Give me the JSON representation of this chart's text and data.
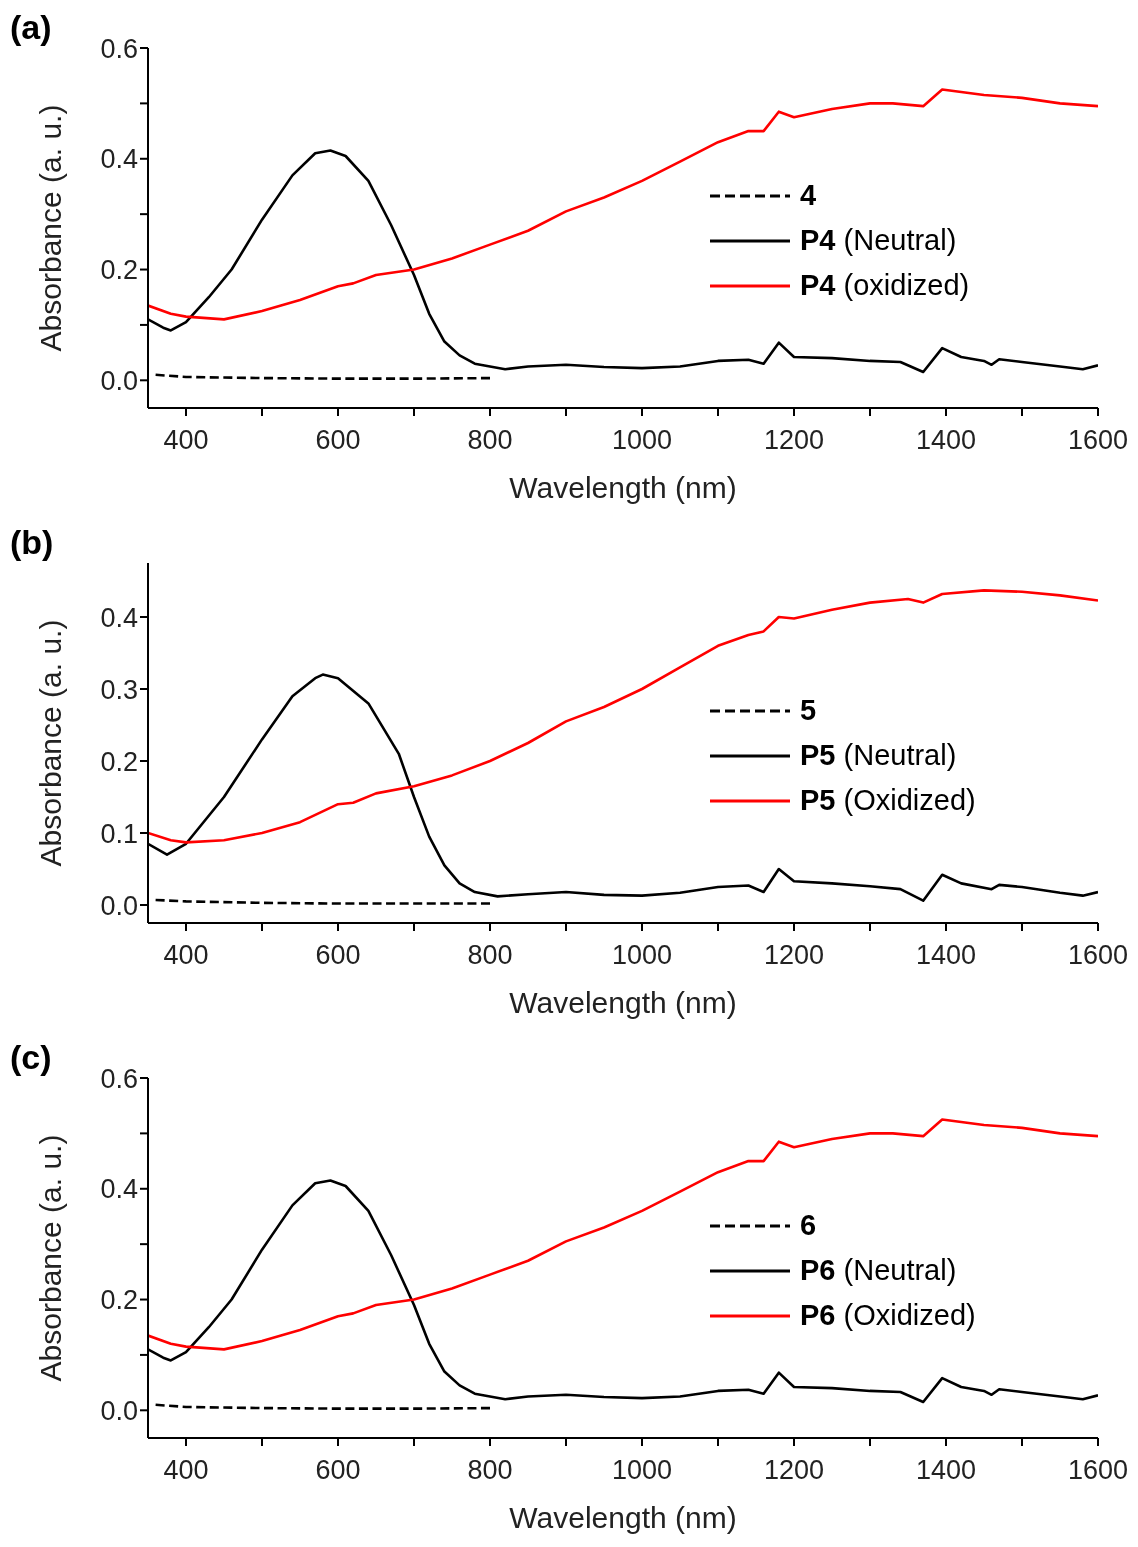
{
  "chart_data": [
    {
      "type": "line",
      "title": "(a)",
      "xlabel": "Wavelength (nm)",
      "ylabel": "Absorbance (a. u.)",
      "xlim": [
        350,
        1600
      ],
      "ylim": [
        -0.05,
        0.6
      ],
      "xticks": [
        400,
        {
          "value": 500,
          "label": null
        },
        600,
        {
          "value": 700,
          "label": null
        },
        800,
        {
          "value": 900,
          "label": null
        },
        1000,
        {
          "value": 1100,
          "label": null
        },
        1200,
        {
          "value": 1300,
          "label": null
        },
        1400,
        {
          "value": 1500,
          "label": null
        },
        1600
      ],
      "yticks": [
        {
          "value": 0,
          "label": "0.0"
        },
        {
          "value": 0.1,
          "label": null
        },
        {
          "value": 0.2,
          "label": "0.2"
        },
        {
          "value": 0.3,
          "label": null
        },
        {
          "value": 0.4,
          "label": "0.4"
        },
        {
          "value": 0.5,
          "label": null
        },
        {
          "value": 0.6,
          "label": "0.6"
        }
      ],
      "grid": false,
      "legend": "right",
      "marker": "none",
      "series": [
        {
          "name": "4",
          "color": "#000000",
          "line_style": "dashed",
          "x": [
            360,
            400,
            500,
            600,
            700,
            800
          ],
          "values": [
            0.01,
            0.006,
            0.004,
            0.003,
            0.003,
            0.004
          ]
        },
        {
          "name": "P4 (Neutral)",
          "color": "#000000",
          "line_style": "solid",
          "x": [
            350,
            370,
            380,
            400,
            430,
            460,
            500,
            540,
            570,
            590,
            610,
            640,
            670,
            700,
            720,
            740,
            760,
            780,
            800,
            820,
            850,
            900,
            950,
            1000,
            1050,
            1100,
            1140,
            1160,
            1180,
            1200,
            1250,
            1300,
            1340,
            1370,
            1395,
            1420,
            1450,
            1460,
            1470,
            1500,
            1550,
            1580,
            1600
          ],
          "values": [
            0.11,
            0.095,
            0.09,
            0.105,
            0.15,
            0.2,
            0.29,
            0.37,
            0.41,
            0.415,
            0.405,
            0.36,
            0.28,
            0.19,
            0.12,
            0.07,
            0.045,
            0.03,
            0.025,
            0.02,
            0.025,
            0.028,
            0.024,
            0.022,
            0.025,
            0.035,
            0.037,
            0.03,
            0.068,
            0.042,
            0.04,
            0.035,
            0.033,
            0.015,
            0.058,
            0.042,
            0.035,
            0.028,
            0.038,
            0.033,
            0.025,
            0.02,
            0.027
          ]
        },
        {
          "name": "P4 (oxidized)",
          "color": "#ff0000",
          "line_style": "solid",
          "x": [
            350,
            380,
            400,
            450,
            500,
            550,
            600,
            620,
            650,
            700,
            750,
            800,
            850,
            900,
            950,
            1000,
            1050,
            1100,
            1140,
            1160,
            1180,
            1200,
            1250,
            1300,
            1330,
            1370,
            1395,
            1450,
            1500,
            1550,
            1600
          ],
          "values": [
            0.135,
            0.12,
            0.115,
            0.11,
            0.125,
            0.145,
            0.17,
            0.175,
            0.19,
            0.2,
            0.22,
            0.245,
            0.27,
            0.305,
            0.33,
            0.36,
            0.395,
            0.43,
            0.45,
            0.45,
            0.485,
            0.475,
            0.49,
            0.5,
            0.5,
            0.495,
            0.525,
            0.515,
            0.51,
            0.5,
            0.495
          ]
        }
      ]
    },
    {
      "type": "line",
      "title": "(b)",
      "xlabel": "Wavelength (nm)",
      "ylabel": "Absorbance (a. u.)",
      "xlim": [
        350,
        1600
      ],
      "ylim": [
        -0.025,
        0.475
      ],
      "xticks": [
        400,
        {
          "value": 500,
          "label": null
        },
        600,
        {
          "value": 700,
          "label": null
        },
        800,
        {
          "value": 900,
          "label": null
        },
        1000,
        {
          "value": 1100,
          "label": null
        },
        1200,
        {
          "value": 1300,
          "label": null
        },
        1400,
        {
          "value": 1500,
          "label": null
        },
        1600
      ],
      "yticks": [
        {
          "value": 0,
          "label": "0.0"
        },
        0.1,
        0.2,
        0.3,
        0.4
      ],
      "grid": false,
      "legend": "right",
      "marker": "none",
      "series": [
        {
          "name": "5",
          "color": "#000000",
          "line_style": "dashed",
          "x": [
            360,
            400,
            500,
            600,
            700,
            800
          ],
          "values": [
            0.007,
            0.005,
            0.003,
            0.002,
            0.002,
            0.002
          ]
        },
        {
          "name": "P5 (Neutral)",
          "color": "#000000",
          "line_style": "solid",
          "x": [
            350,
            375,
            400,
            450,
            500,
            540,
            570,
            580,
            600,
            640,
            680,
            700,
            720,
            740,
            760,
            780,
            810,
            850,
            900,
            950,
            1000,
            1050,
            1100,
            1140,
            1160,
            1180,
            1200,
            1250,
            1300,
            1340,
            1370,
            1395,
            1420,
            1460,
            1470,
            1500,
            1550,
            1580,
            1600
          ],
          "values": [
            0.085,
            0.07,
            0.085,
            0.15,
            0.23,
            0.29,
            0.315,
            0.32,
            0.315,
            0.28,
            0.21,
            0.15,
            0.095,
            0.055,
            0.03,
            0.018,
            0.012,
            0.015,
            0.018,
            0.014,
            0.013,
            0.017,
            0.025,
            0.027,
            0.018,
            0.05,
            0.033,
            0.03,
            0.026,
            0.022,
            0.006,
            0.042,
            0.03,
            0.022,
            0.028,
            0.025,
            0.017,
            0.013,
            0.018
          ]
        },
        {
          "name": "P5 (Oxidized)",
          "color": "#ff0000",
          "line_style": "solid",
          "x": [
            350,
            380,
            400,
            450,
            500,
            550,
            600,
            620,
            650,
            700,
            750,
            800,
            850,
            900,
            950,
            1000,
            1050,
            1100,
            1140,
            1160,
            1180,
            1200,
            1250,
            1300,
            1350,
            1370,
            1395,
            1450,
            1500,
            1550,
            1600
          ],
          "values": [
            0.1,
            0.09,
            0.087,
            0.09,
            0.1,
            0.115,
            0.14,
            0.142,
            0.155,
            0.165,
            0.18,
            0.2,
            0.225,
            0.255,
            0.275,
            0.3,
            0.33,
            0.36,
            0.375,
            0.38,
            0.4,
            0.398,
            0.41,
            0.42,
            0.425,
            0.42,
            0.432,
            0.437,
            0.435,
            0.43,
            0.423
          ]
        }
      ]
    },
    {
      "type": "line",
      "title": "(c)",
      "xlabel": "Wavelength (nm)",
      "ylabel": "Absorbance (a. u.)",
      "xlim": [
        350,
        1600
      ],
      "ylim": [
        -0.05,
        0.6
      ],
      "xticks": [
        400,
        {
          "value": 500,
          "label": null
        },
        600,
        {
          "value": 700,
          "label": null
        },
        800,
        {
          "value": 900,
          "label": null
        },
        1000,
        {
          "value": 1100,
          "label": null
        },
        1200,
        {
          "value": 1300,
          "label": null
        },
        1400,
        {
          "value": 1500,
          "label": null
        },
        1600
      ],
      "yticks": [
        {
          "value": 0,
          "label": "0.0"
        },
        {
          "value": 0.1,
          "label": null
        },
        {
          "value": 0.2,
          "label": "0.2"
        },
        {
          "value": 0.3,
          "label": null
        },
        {
          "value": 0.4,
          "label": "0.4"
        },
        {
          "value": 0.5,
          "label": null
        },
        {
          "value": 0.6,
          "label": "0.6"
        }
      ],
      "grid": false,
      "legend": "right",
      "marker": "none",
      "series": [
        {
          "name": "6",
          "color": "#000000",
          "line_style": "dashed",
          "x": [
            360,
            400,
            500,
            600,
            700,
            800
          ],
          "values": [
            0.01,
            0.006,
            0.004,
            0.003,
            0.003,
            0.004
          ]
        },
        {
          "name": "P6 (Neutral)",
          "color": "#000000",
          "line_style": "solid",
          "x": [
            350,
            370,
            380,
            400,
            430,
            460,
            500,
            540,
            570,
            590,
            610,
            640,
            670,
            700,
            720,
            740,
            760,
            780,
            800,
            820,
            850,
            900,
            950,
            1000,
            1050,
            1100,
            1140,
            1160,
            1180,
            1200,
            1250,
            1300,
            1340,
            1370,
            1395,
            1420,
            1450,
            1460,
            1470,
            1500,
            1550,
            1580,
            1600
          ],
          "values": [
            0.11,
            0.095,
            0.09,
            0.105,
            0.15,
            0.2,
            0.29,
            0.37,
            0.41,
            0.415,
            0.405,
            0.36,
            0.28,
            0.19,
            0.12,
            0.07,
            0.045,
            0.03,
            0.025,
            0.02,
            0.025,
            0.028,
            0.024,
            0.022,
            0.025,
            0.035,
            0.037,
            0.03,
            0.068,
            0.042,
            0.04,
            0.035,
            0.033,
            0.015,
            0.058,
            0.042,
            0.035,
            0.028,
            0.038,
            0.033,
            0.025,
            0.02,
            0.027
          ]
        },
        {
          "name": "P6 (Oxidized)",
          "color": "#ff0000",
          "line_style": "solid",
          "x": [
            350,
            380,
            400,
            450,
            500,
            550,
            600,
            620,
            650,
            700,
            750,
            800,
            850,
            900,
            950,
            1000,
            1050,
            1100,
            1140,
            1160,
            1180,
            1200,
            1250,
            1300,
            1330,
            1370,
            1395,
            1450,
            1500,
            1550,
            1600
          ],
          "values": [
            0.135,
            0.12,
            0.115,
            0.11,
            0.125,
            0.145,
            0.17,
            0.175,
            0.19,
            0.2,
            0.22,
            0.245,
            0.27,
            0.305,
            0.33,
            0.36,
            0.395,
            0.43,
            0.45,
            0.45,
            0.485,
            0.475,
            0.49,
            0.5,
            0.5,
            0.495,
            0.525,
            0.515,
            0.51,
            0.5,
            0.495
          ]
        }
      ]
    }
  ]
}
